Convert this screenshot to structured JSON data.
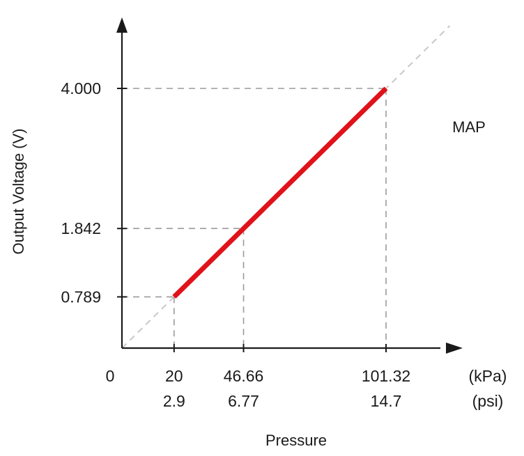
{
  "chart_data": {
    "type": "line",
    "title": "",
    "xlabel": "Pressure",
    "ylabel": "Output Voltage (V)",
    "x_unit_primary": "(kPa)",
    "x_unit_secondary": "(psi)",
    "xlim": [
      0,
      130
    ],
    "ylim": [
      0,
      5.6
    ],
    "origin_label": "0",
    "x_ticks": [
      {
        "value": 20,
        "label": "20",
        "label2": "2.9"
      },
      {
        "value": 46.66,
        "label": "46.66",
        "label2": "6.77"
      },
      {
        "value": 101.32,
        "label": "101.32",
        "label2": "14.7"
      }
    ],
    "y_ticks": [
      {
        "value": 0.789,
        "label": "0.789"
      },
      {
        "value": 1.842,
        "label": "1.842"
      },
      {
        "value": 4.0,
        "label": "4.000"
      }
    ],
    "series": [
      {
        "name": "MAP",
        "color": "#e0121a",
        "x": [
          20,
          46.66,
          101.32
        ],
        "y": [
          0.789,
          1.842,
          4.0
        ]
      }
    ],
    "extrapolation_color": "#c8c8c8",
    "reference_line_color": "#9a9a9a",
    "axis_color": "#1a1a1a",
    "grid": false
  }
}
